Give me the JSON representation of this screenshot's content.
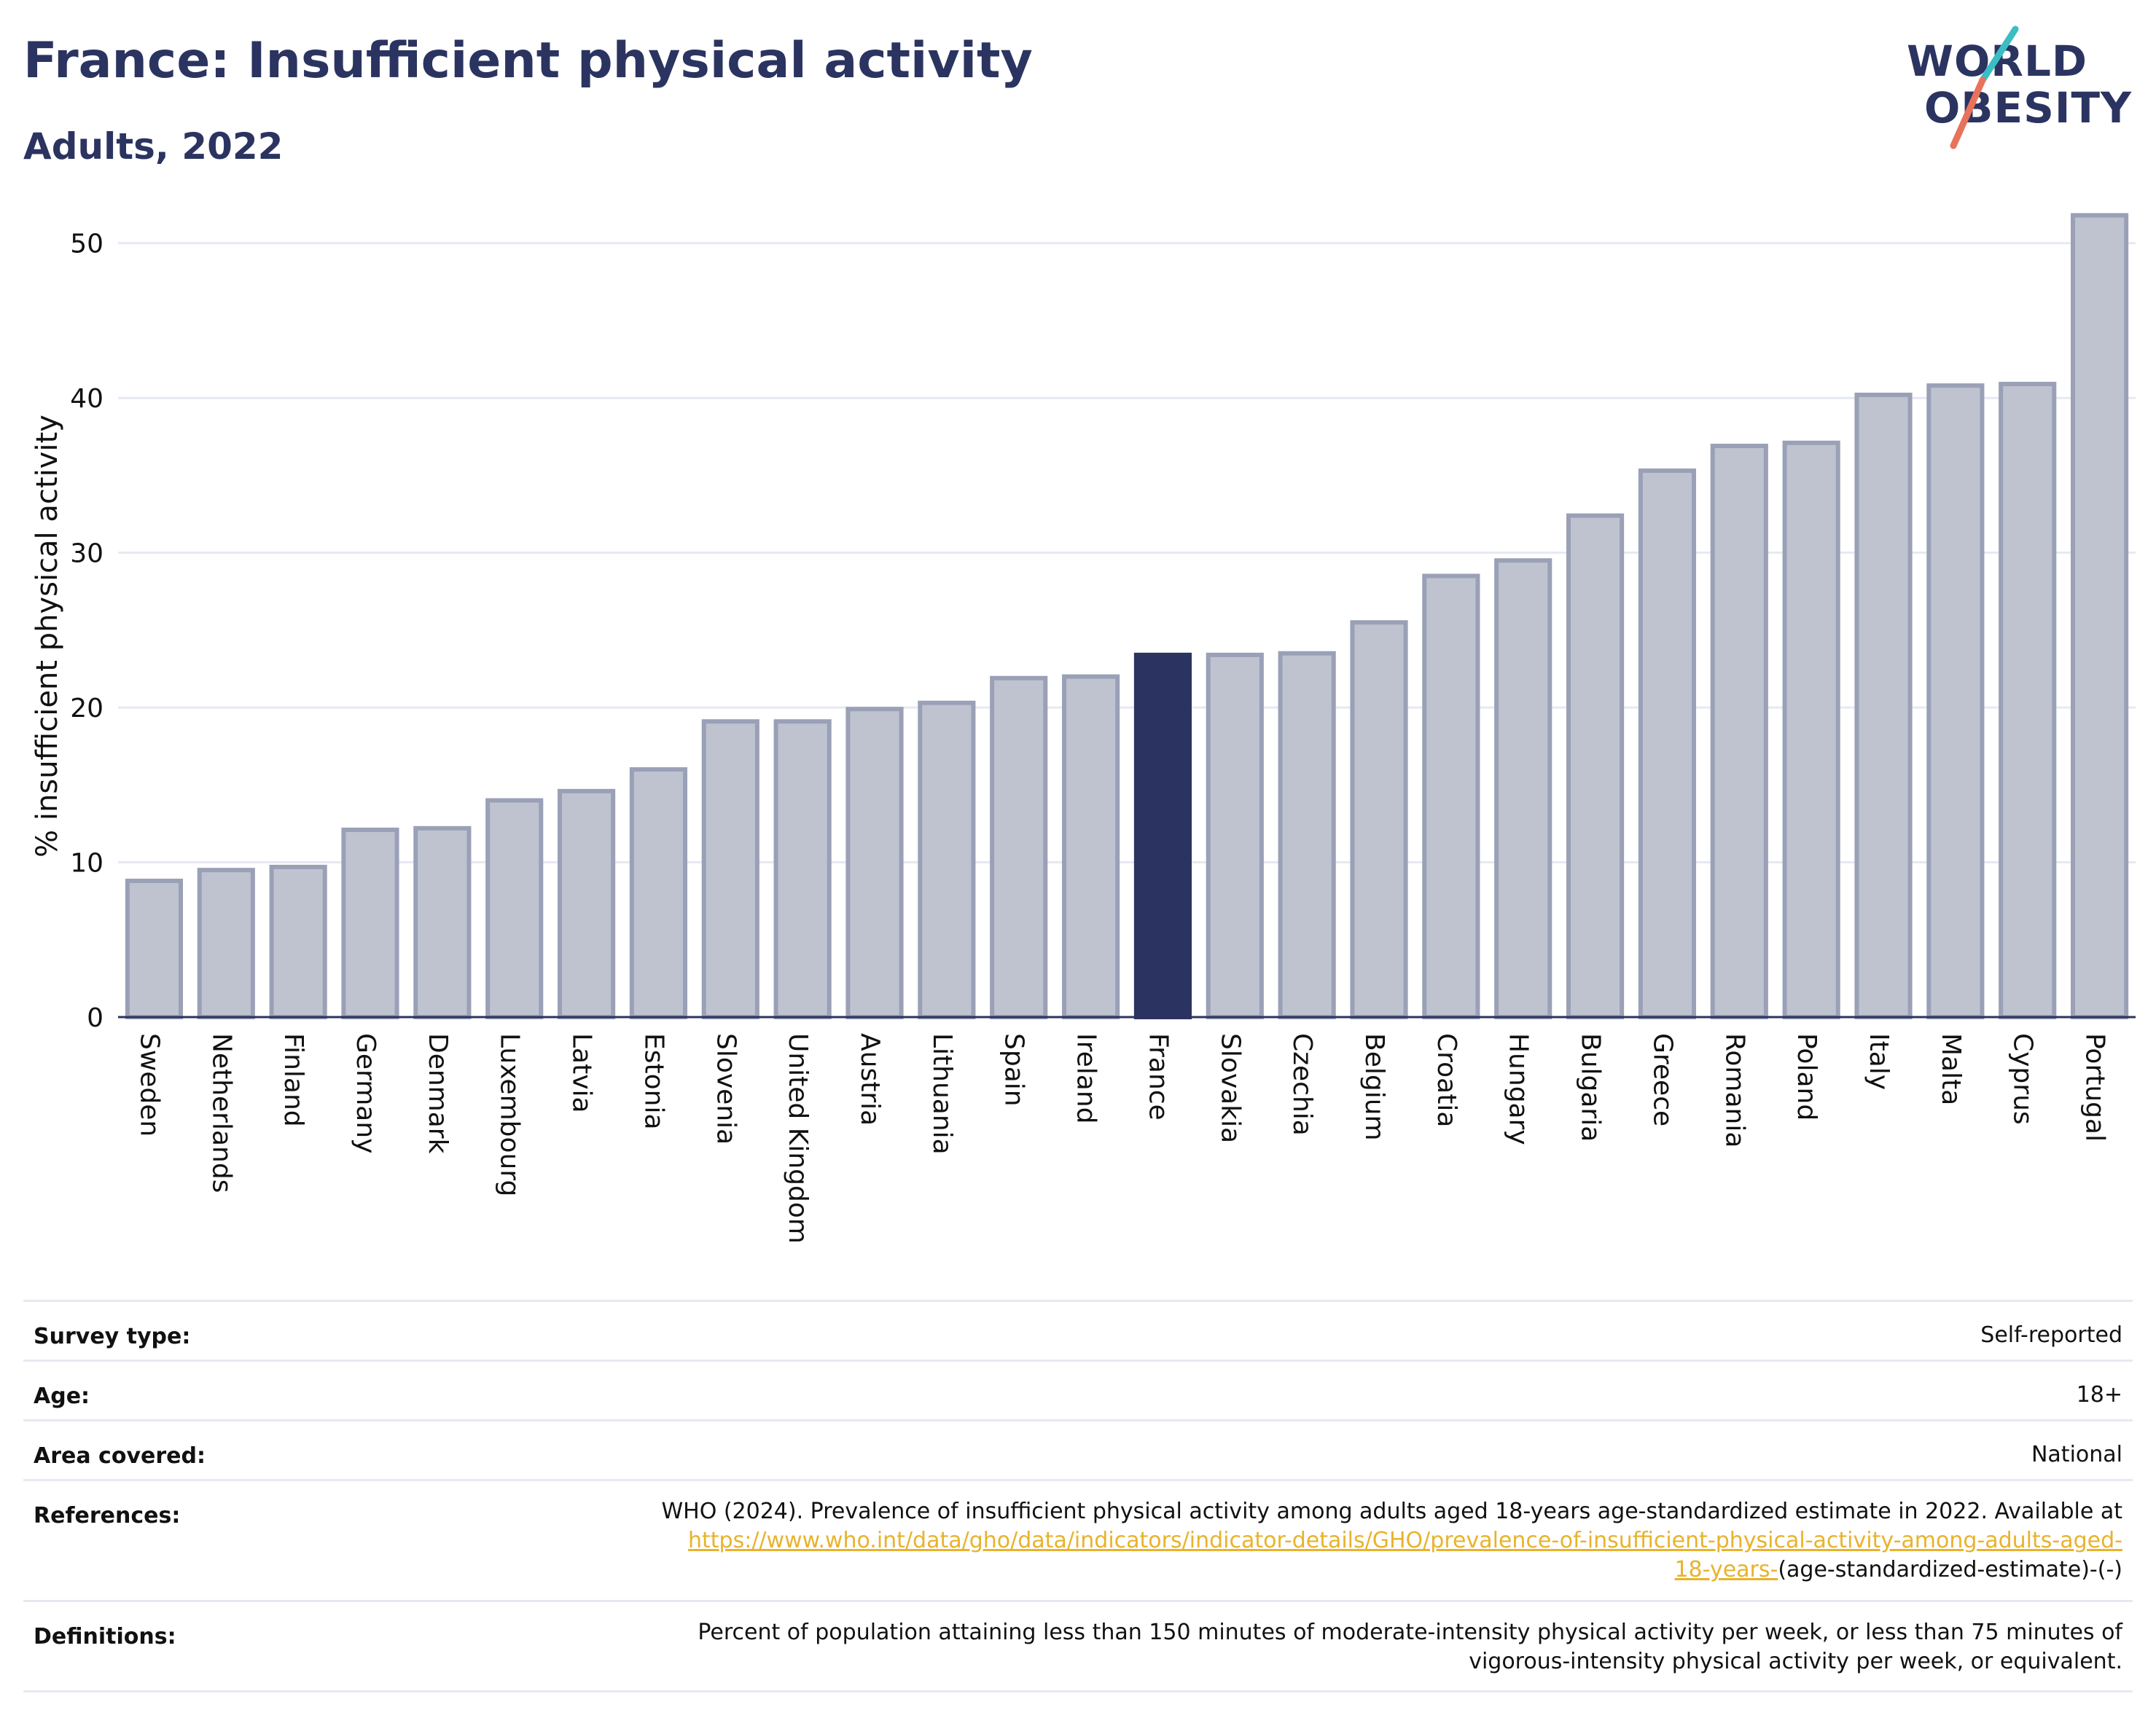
{
  "header": {
    "title": "France: Insufficient physical activity",
    "subtitle": "Adults, 2022"
  },
  "logo": {
    "line1": "WORLD",
    "line2": "OBESITY",
    "accent_color_1": "#3bbdc4",
    "accent_color_2": "#e8725c"
  },
  "colors": {
    "bar": "#bfc3d0",
    "bar_border": "#9aa0b6",
    "highlight": "#2b3460",
    "grid": "#e6e9f2",
    "axis": "#2b3460"
  },
  "chart_data": {
    "type": "bar",
    "ylabel": "% insufficient physical activity",
    "ylim": [
      0,
      53
    ],
    "yticks": [
      0,
      10,
      20,
      30,
      40,
      50
    ],
    "grid": true,
    "highlight": "France",
    "categories": [
      "Sweden",
      "Netherlands",
      "Finland",
      "Germany",
      "Denmark",
      "Luxembourg",
      "Latvia",
      "Estonia",
      "Slovenia",
      "United Kingdom",
      "Austria",
      "Lithuania",
      "Spain",
      "Ireland",
      "France",
      "Slovakia",
      "Czechia",
      "Belgium",
      "Croatia",
      "Hungary",
      "Bulgaria",
      "Greece",
      "Romania",
      "Poland",
      "Italy",
      "Malta",
      "Cyprus",
      "Portugal"
    ],
    "values": [
      8.8,
      9.5,
      9.7,
      12.1,
      12.2,
      14.0,
      14.6,
      16.0,
      19.1,
      19.1,
      19.9,
      20.3,
      21.9,
      22.0,
      23.4,
      23.4,
      23.5,
      25.5,
      28.5,
      29.5,
      32.4,
      35.3,
      36.9,
      37.1,
      40.2,
      40.8,
      40.9,
      51.8
    ]
  },
  "info": {
    "survey_type": {
      "label": "Survey type:",
      "value": "Self-reported"
    },
    "age": {
      "label": "Age:",
      "value": "18+"
    },
    "area": {
      "label": "Area covered:",
      "value": "National"
    },
    "references": {
      "label": "References:",
      "text_before": "WHO (2024). Prevalence of insufficient physical activity among adults aged 18-years age-standardized estimate in 2022. Available at",
      "link_line1": "https://www.who.int/data/gho/data/indicators/indicator-details/GHO/prevalence-of-insufficient-physical-activity-among-adults-aged-",
      "link_line2": "18-years-",
      "text_after": "(age-standardized-estimate)-(-)"
    },
    "definitions": {
      "label": "Definitions:",
      "line1": "Percent of population attaining less than 150 minutes of moderate-intensity physical activity per week, or less than 75 minutes of",
      "line2": "vigorous-intensity physical activity per week, or equivalent."
    }
  }
}
